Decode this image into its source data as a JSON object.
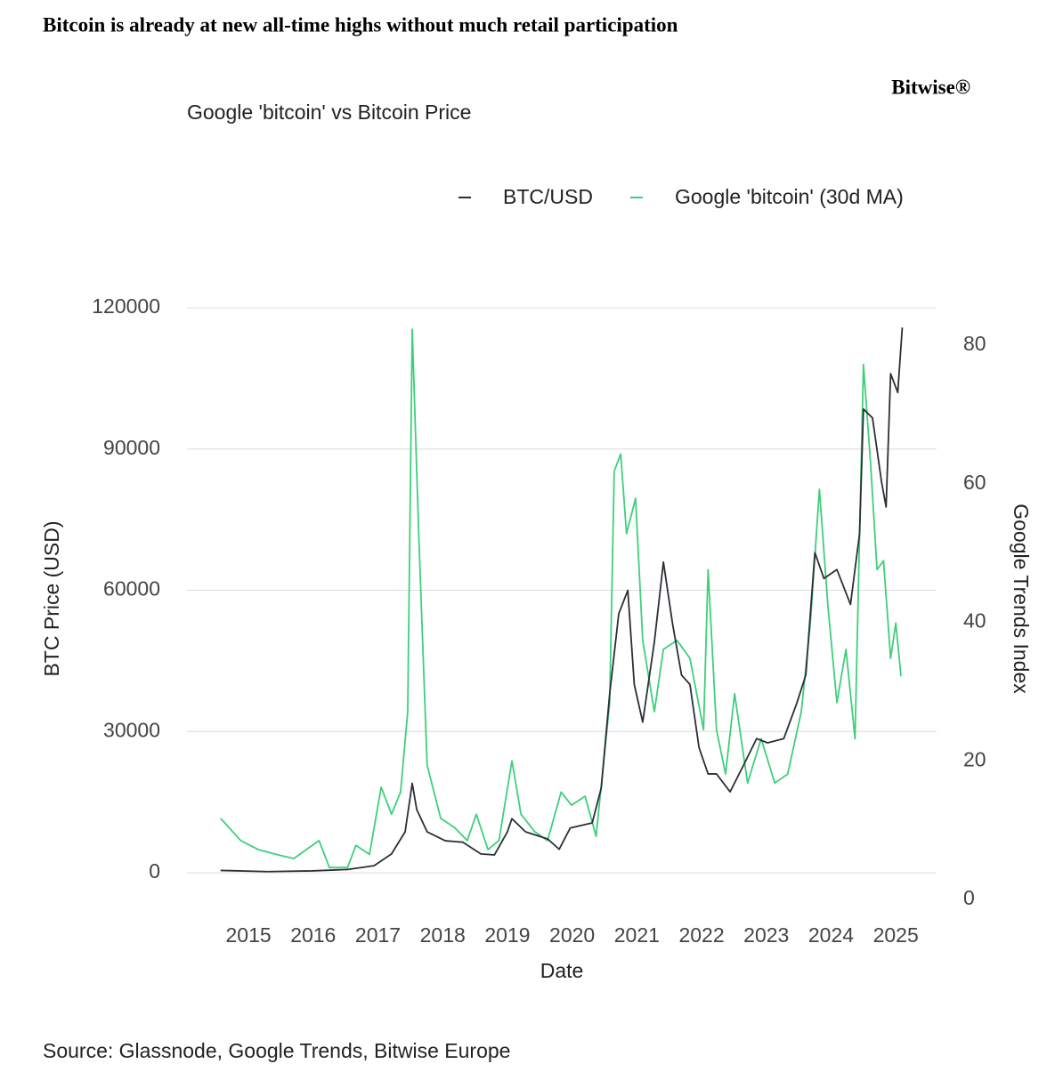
{
  "chart_data": {
    "type": "line",
    "title": "Bitcoin is already at new all-time highs without much retail participation",
    "logo": "Bitwise®",
    "subtitle": "Google 'bitcoin' vs Bitcoin Price",
    "source": "Source: Glassnode, Google Trends, Bitwise Europe",
    "x_label": "Date",
    "y_label": "BTC Price (USD)",
    "y2_label": "Google Trends Index",
    "xlim": [
      2014.05,
      2025.63
    ],
    "xticks": [
      2015,
      2016,
      2017,
      2018,
      2019,
      2020,
      2021,
      2022,
      2023,
      2024,
      2025
    ],
    "ylim": [
      -10000,
      125000
    ],
    "yticks": [
      0,
      30000,
      60000,
      90000,
      120000
    ],
    "y2lim": [
      -2.95,
      88.8
    ],
    "y2ticks": [
      0,
      20,
      40,
      60,
      80
    ],
    "grid": true,
    "legend": "top-right",
    "series": [
      {
        "name": "BTC/USD",
        "color": "#2b2f36",
        "axis": "y",
        "x": [
          2014.57,
          2015.29,
          2015.98,
          2016.53,
          2016.94,
          2017.21,
          2017.42,
          2017.53,
          2017.6,
          2017.76,
          2018.04,
          2018.31,
          2018.59,
          2018.8,
          2019.0,
          2019.07,
          2019.28,
          2019.62,
          2019.8,
          2019.97,
          2020.31,
          2020.45,
          2020.58,
          2020.72,
          2020.86,
          2020.96,
          2021.09,
          2021.27,
          2021.41,
          2021.55,
          2021.69,
          2021.82,
          2021.96,
          2022.1,
          2022.23,
          2022.44,
          2022.65,
          2022.85,
          2023.02,
          2023.27,
          2023.47,
          2023.61,
          2023.75,
          2023.89,
          2024.09,
          2024.3,
          2024.44,
          2024.5,
          2024.64,
          2024.78,
          2024.85,
          2024.92,
          2025.03,
          2025.1
        ],
        "values": [
          500,
          250,
          400,
          700,
          1500,
          4000,
          8700,
          19000,
          13400,
          8700,
          6800,
          6500,
          4000,
          3800,
          8700,
          11500,
          8700,
          7200,
          5000,
          9500,
          10600,
          18000,
          38000,
          55000,
          60000,
          40000,
          32000,
          49000,
          66000,
          53000,
          42000,
          40000,
          26600,
          21000,
          21000,
          17200,
          22900,
          28500,
          27600,
          28500,
          36000,
          42000,
          68000,
          62500,
          64400,
          57000,
          72000,
          98500,
          96600,
          83000,
          77700,
          106000,
          102000,
          115800
        ]
      },
      {
        "name": "Google 'bitcoin' (30d MA)",
        "color": "#3ecf7a",
        "axis": "y2",
        "x": [
          2014.57,
          2014.88,
          2015.15,
          2015.43,
          2015.7,
          2016.09,
          2016.25,
          2016.53,
          2016.66,
          2016.87,
          2017.05,
          2017.21,
          2017.35,
          2017.46,
          2017.53,
          2017.63,
          2017.76,
          2017.97,
          2018.18,
          2018.38,
          2018.52,
          2018.7,
          2018.87,
          2019.07,
          2019.21,
          2019.42,
          2019.62,
          2019.83,
          2019.99,
          2020.2,
          2020.37,
          2020.58,
          2020.65,
          2020.75,
          2020.84,
          2020.98,
          2021.09,
          2021.27,
          2021.41,
          2021.62,
          2021.82,
          2022.03,
          2022.1,
          2022.23,
          2022.37,
          2022.51,
          2022.71,
          2022.92,
          2023.13,
          2023.33,
          2023.54,
          2023.68,
          2023.82,
          2023.95,
          2024.09,
          2024.23,
          2024.37,
          2024.5,
          2024.61,
          2024.71,
          2024.81,
          2024.92,
          2025.0,
          2025.08
        ],
        "values": [
          11.7,
          8.5,
          7.2,
          6.5,
          5.9,
          8.5,
          4.6,
          4.6,
          7.8,
          6.5,
          16.2,
          12.3,
          15.5,
          27.1,
          82.3,
          52.8,
          19.4,
          11.7,
          10.4,
          8.5,
          12.3,
          7.2,
          8.5,
          20,
          12.3,
          9.8,
          8.5,
          15.5,
          13.6,
          14.9,
          9.1,
          28.4,
          61.8,
          64.3,
          52.8,
          57.9,
          37.4,
          27.1,
          36.1,
          37.4,
          34.8,
          24.5,
          47.6,
          24.5,
          18.1,
          29.7,
          16.8,
          23.2,
          16.8,
          18.1,
          27.1,
          39.9,
          59.2,
          42.5,
          28.4,
          36.1,
          23.2,
          77.2,
          63,
          47.6,
          48.9,
          34.8,
          39.9,
          32.2
        ]
      }
    ]
  }
}
